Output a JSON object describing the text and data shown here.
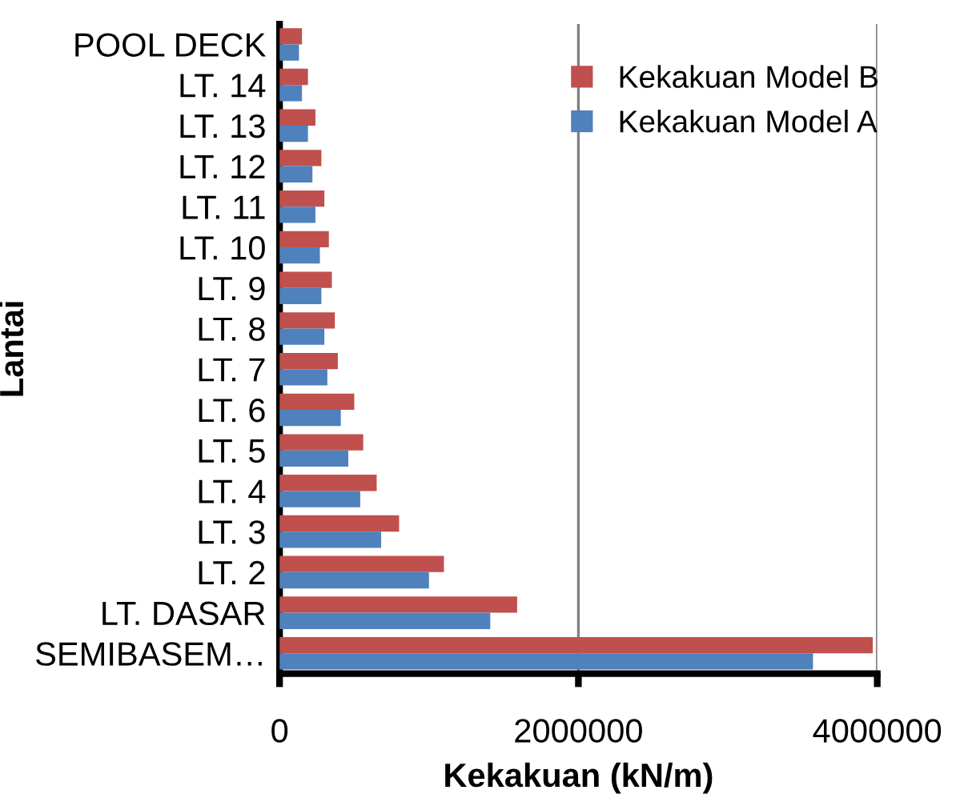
{
  "chart_data": {
    "type": "bar",
    "orientation": "horizontal",
    "xlabel": "Kekakuan (kN/m)",
    "ylabel": "Lantai",
    "categories": [
      "POOL DECK",
      "LT. 14",
      "LT. 13",
      "LT. 12",
      "LT. 11",
      "LT. 10",
      "LT. 9",
      "LT. 8",
      "LT. 7",
      "LT. 6",
      "LT. 5",
      "LT. 4",
      "LT. 3",
      "LT. 2",
      "LT. DASAR",
      "SEMIBASEM…"
    ],
    "series": [
      {
        "name": "Kekakuan Model B",
        "color": "#c0504d",
        "values": [
          150000,
          190000,
          240000,
          280000,
          300000,
          330000,
          350000,
          370000,
          390000,
          500000,
          560000,
          650000,
          800000,
          1100000,
          1590000,
          3970000
        ]
      },
      {
        "name": "Kekakuan Model A",
        "color": "#4f81bd",
        "values": [
          130000,
          150000,
          190000,
          220000,
          240000,
          270000,
          280000,
          300000,
          320000,
          410000,
          460000,
          540000,
          680000,
          1000000,
          1410000,
          3570000
        ]
      }
    ],
    "xlim": [
      0,
      4000000
    ],
    "xticks": [
      0,
      2000000,
      4000000
    ],
    "grid": "x",
    "legend": "top right"
  }
}
